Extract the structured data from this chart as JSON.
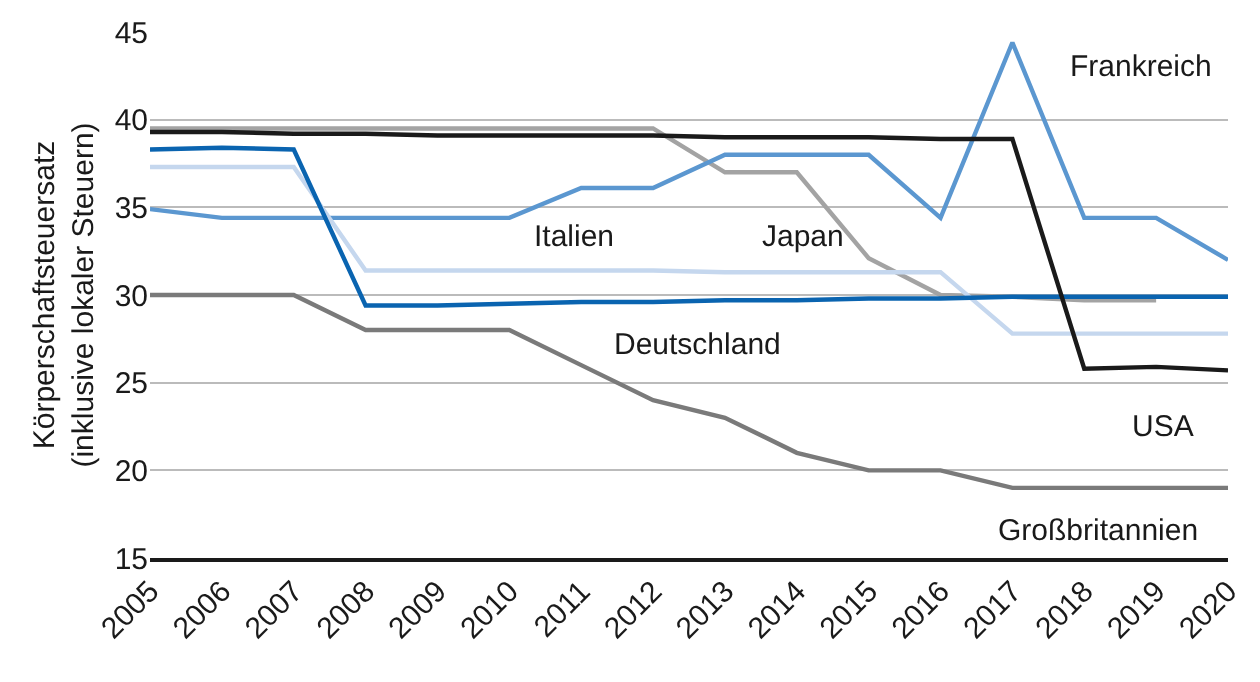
{
  "chart_data": {
    "type": "line",
    "ylabel": "Körperschaftsteuersatz\n(inklusive lokaler Steuern)",
    "x": [
      2005,
      2006,
      2007,
      2008,
      2009,
      2010,
      2011,
      2012,
      2013,
      2014,
      2015,
      2016,
      2017,
      2018,
      2019,
      2020
    ],
    "xlim": [
      2005,
      2020
    ],
    "xticks": [
      2005,
      2006,
      2007,
      2008,
      2009,
      2010,
      2011,
      2012,
      2013,
      2014,
      2015,
      2016,
      2017,
      2018,
      2019,
      2020
    ],
    "ylim": [
      15,
      45
    ],
    "yticks": [
      15,
      20,
      25,
      30,
      35,
      40,
      45
    ],
    "grid": "y",
    "legend": false,
    "marker": "none",
    "line_style": "solid",
    "series": [
      {
        "name": "Japan",
        "color": "#a3a3a3",
        "values": [
          39.5,
          39.5,
          39.5,
          39.5,
          39.5,
          39.5,
          39.5,
          39.5,
          37.0,
          37.0,
          32.1,
          30.0,
          29.9,
          29.7,
          29.7,
          null
        ]
      },
      {
        "name": "Frankreich",
        "color": "#5b97d0",
        "values": [
          34.9,
          34.4,
          34.4,
          34.4,
          34.4,
          34.4,
          36.1,
          36.1,
          38.0,
          38.0,
          38.0,
          34.4,
          44.4,
          34.4,
          34.4,
          32.0
        ]
      },
      {
        "name": "Italien",
        "color": "#c5d7ee",
        "values": [
          37.3,
          37.3,
          37.3,
          31.4,
          31.4,
          31.4,
          31.4,
          31.4,
          31.3,
          31.3,
          31.3,
          31.3,
          27.8,
          27.8,
          27.8,
          27.8
        ]
      },
      {
        "name": "Deutschland",
        "color": "#0a64b0",
        "values": [
          38.3,
          38.4,
          38.3,
          29.4,
          29.4,
          29.5,
          29.6,
          29.6,
          29.7,
          29.7,
          29.8,
          29.8,
          29.9,
          29.9,
          29.9,
          29.9
        ]
      },
      {
        "name": "Großbritannien",
        "color": "#7a7a7a",
        "values": [
          30,
          30,
          30,
          28,
          28,
          28,
          26,
          24,
          23,
          21,
          20,
          20,
          19,
          19,
          19,
          19
        ]
      },
      {
        "name": "USA",
        "color": "#1a1a1a",
        "values": [
          39.3,
          39.3,
          39.2,
          39.2,
          39.1,
          39.1,
          39.1,
          39.1,
          39.0,
          39.0,
          39.0,
          38.9,
          38.9,
          25.8,
          25.9,
          25.7
        ]
      }
    ]
  }
}
